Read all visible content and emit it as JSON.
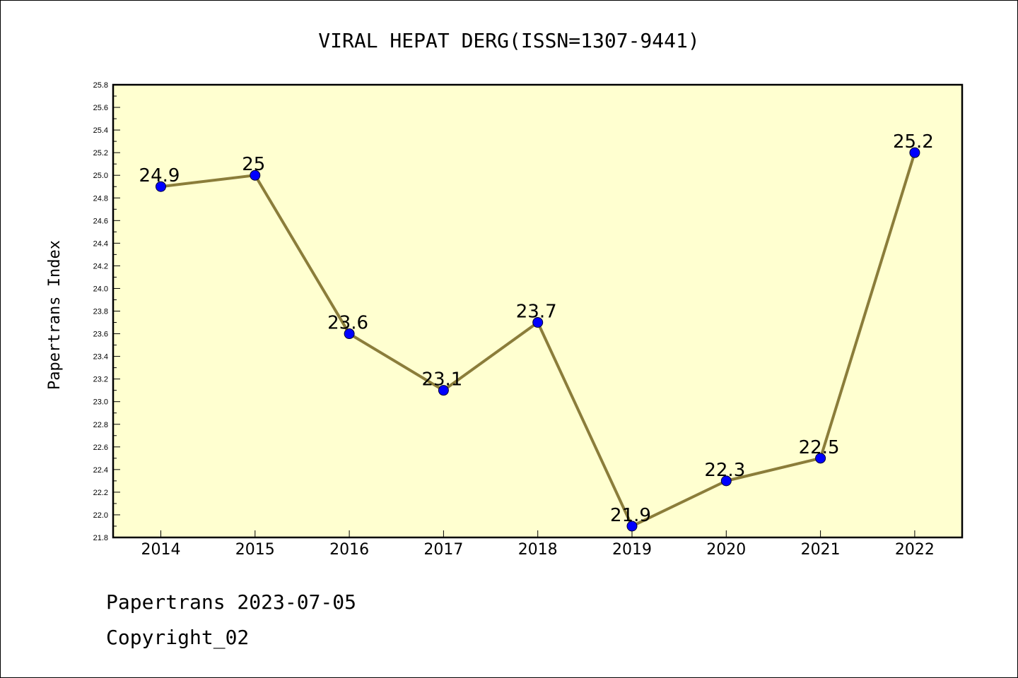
{
  "chart_data": {
    "type": "line",
    "title": "VIRAL HEPAT DERG(ISSN=1307-9441)",
    "xlabel": "",
    "ylabel": "Papertrans Index",
    "categories": [
      "2014",
      "2015",
      "2016",
      "2017",
      "2018",
      "2019",
      "2020",
      "2021",
      "2022"
    ],
    "series": [
      {
        "values": [
          24.9,
          25.0,
          23.6,
          23.1,
          23.7,
          21.9,
          22.3,
          22.5,
          25.2
        ],
        "data_labels": [
          "24.9",
          "25",
          "23.6",
          "23.1",
          "23.7",
          "21.9",
          "22.3",
          "22.5",
          "25.2"
        ]
      }
    ],
    "ylim": [
      21.8,
      25.8
    ],
    "yticks": [
      "21.8",
      "22.0",
      "22.2",
      "22.4",
      "22.6",
      "22.8",
      "23.0",
      "23.2",
      "23.4",
      "23.6",
      "23.8",
      "24.0",
      "24.2",
      "24.4",
      "24.6",
      "24.8",
      "25.0",
      "25.2",
      "25.4",
      "25.6",
      "25.8"
    ],
    "grid": false,
    "legend": "none",
    "colors": {
      "plot_background": "#ffffd0",
      "line": "#8b7d3a",
      "marker": "#0000ff"
    }
  },
  "footer": {
    "date_line": "Papertrans 2023-07-05",
    "copyright": "Copyright_02"
  }
}
